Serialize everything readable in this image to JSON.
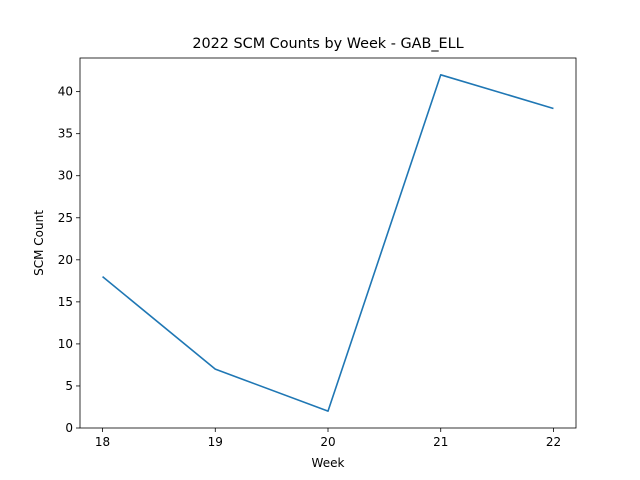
{
  "chart_data": {
    "type": "line",
    "title": "2022 SCM Counts by Week - GAB_ELL",
    "xlabel": "Week",
    "ylabel": "SCM Count",
    "x": [
      18,
      19,
      20,
      21,
      22
    ],
    "xticks": [
      18,
      19,
      20,
      21,
      22
    ],
    "yticks": [
      0,
      5,
      10,
      15,
      20,
      25,
      30,
      35,
      40
    ],
    "xlim": [
      17.8,
      22.2
    ],
    "ylim": [
      0,
      44
    ],
    "grid": false,
    "series": [
      {
        "values": [
          18,
          7,
          2,
          42,
          38
        ],
        "color": "#1f77b4"
      }
    ]
  }
}
